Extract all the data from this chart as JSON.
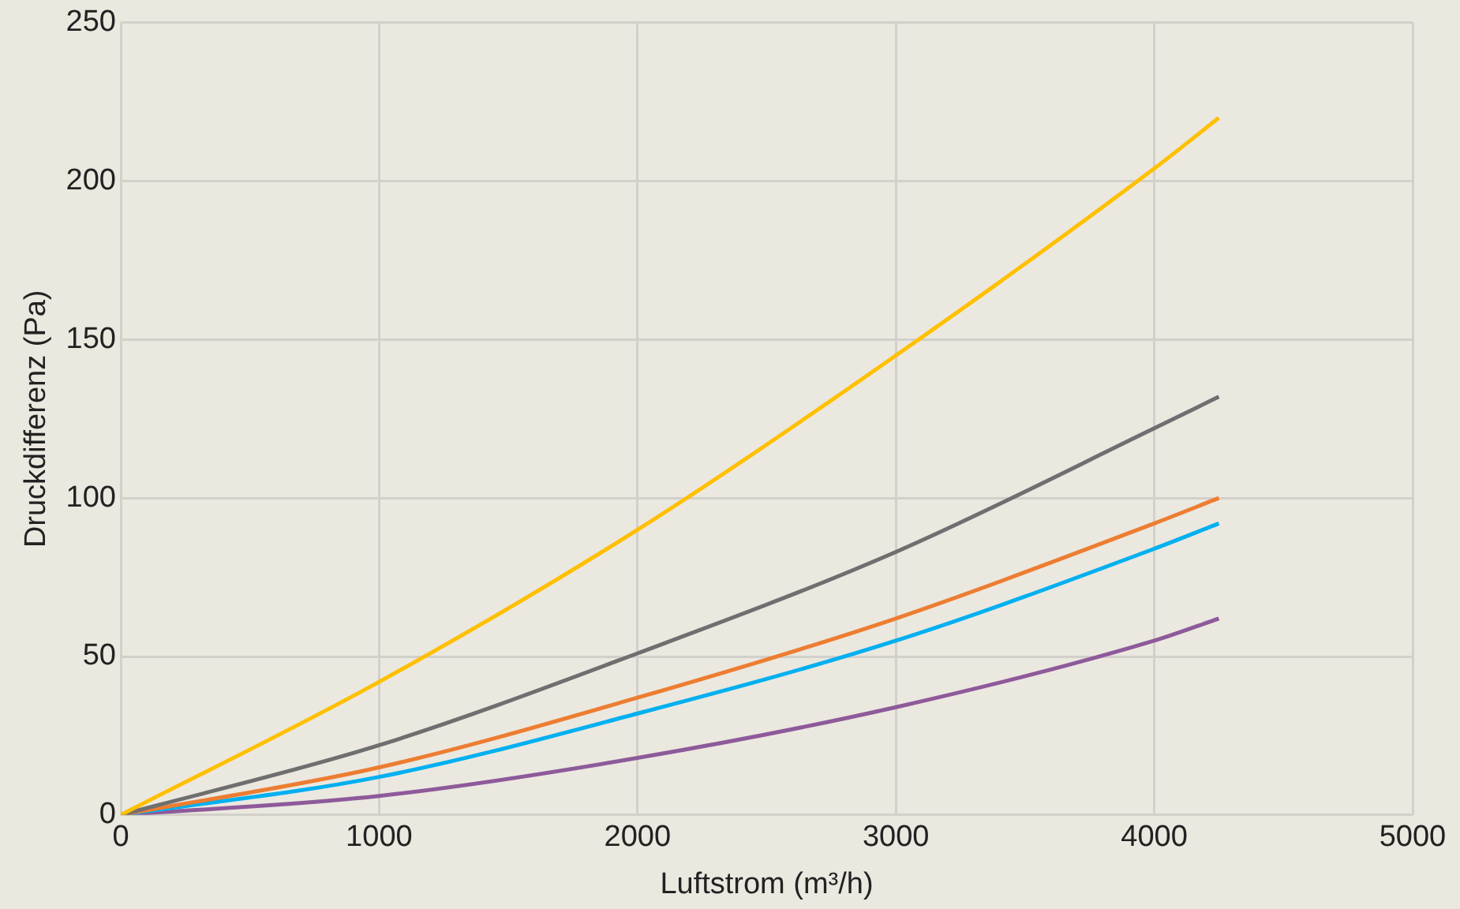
{
  "chart_data": {
    "type": "line",
    "xlabel": "Luftstrom (m³/h)",
    "ylabel": "Druckdifferenz (Pa)",
    "x": [
      0,
      1000,
      2000,
      3000,
      4000,
      4250
    ],
    "series": [
      {
        "color": "#ffc000",
        "values": [
          0,
          42,
          90,
          145,
          204,
          220
        ]
      },
      {
        "color": "#6f6f6f",
        "values": [
          0,
          22,
          51,
          83,
          122,
          132
        ]
      },
      {
        "color": "#ed7d31",
        "values": [
          0,
          15,
          37,
          62,
          92,
          100
        ]
      },
      {
        "color": "#00b0f0",
        "values": [
          0,
          12,
          32,
          55,
          84,
          92
        ]
      },
      {
        "color": "#8e5a9a",
        "values": [
          0,
          6,
          18,
          34,
          55,
          62
        ]
      }
    ],
    "xlim": [
      0,
      5000
    ],
    "xticks": [
      0,
      1000,
      2000,
      3000,
      4000,
      5000
    ],
    "ylim": [
      0,
      250
    ],
    "yticks": [
      0,
      50,
      100,
      150,
      200,
      250
    ],
    "grid": true,
    "legend": false,
    "marker": "none",
    "line_style": "solid"
  }
}
